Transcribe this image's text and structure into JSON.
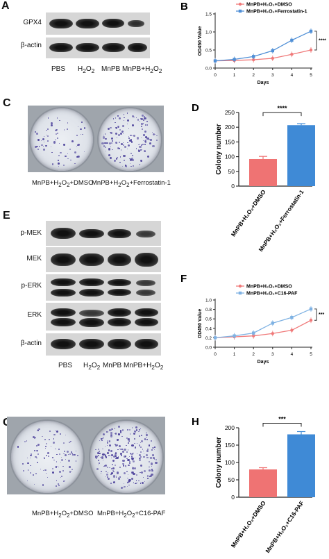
{
  "panels": {
    "A": {
      "letter": "A",
      "rows": [
        "GPX4",
        "β-actin"
      ],
      "lanes": [
        "PBS",
        "H<sub>2</sub>O<sub>2</sub>",
        "MnPB",
        "MnPB+H<sub>2</sub>O<sub>2</sub>"
      ]
    },
    "C": {
      "letter": "C",
      "captions": [
        "MnPB+H<sub>2</sub>O<sub>2</sub>+DMSO",
        "MnPB+H<sub>2</sub>O<sub>2</sub>+Ferrostatin-1"
      ]
    },
    "E": {
      "letter": "E",
      "rows": [
        "p-MEK",
        "MEK",
        "p-ERK",
        "ERK",
        "β-actin"
      ],
      "lanes": [
        "PBS",
        "H<sub>2</sub>O<sub>2</sub>",
        "MnPB",
        "MnPB+H<sub>2</sub>O<sub>2</sub>"
      ]
    },
    "G": {
      "letter": "G",
      "captions": [
        "MnPB+H<sub>2</sub>O<sub>2</sub>+DMSO",
        "MnPB+H<sub>2</sub>O<sub>2</sub>+C16-PAF"
      ]
    }
  },
  "chart_data": [
    {
      "id": "B",
      "type": "line",
      "letter": "B",
      "xlabel": "Days",
      "ylabel": "OD450 Value",
      "x": [
        0,
        1,
        2,
        3,
        4,
        5
      ],
      "xlim": [
        0,
        5
      ],
      "ylim": [
        0,
        1.5
      ],
      "xticks": [
        0,
        1,
        2,
        3,
        4,
        5
      ],
      "yticks": [
        0.0,
        0.5,
        1.0,
        1.5
      ],
      "series": [
        {
          "name": "MnPB+H₂O₂+DMSO",
          "color": "#f07a7a",
          "values": [
            0.2,
            0.21,
            0.23,
            0.27,
            0.38,
            0.5
          ]
        },
        {
          "name": "MnPB+H₂O₂+Ferrostatin-1",
          "color": "#4f8fd6",
          "values": [
            0.2,
            0.24,
            0.32,
            0.48,
            0.77,
            1.02
          ]
        }
      ],
      "significance": "****"
    },
    {
      "id": "D",
      "type": "bar",
      "letter": "D",
      "ylabel": "Colony number",
      "categories": [
        "MnPB+H₂O₂+DMSO",
        "MnPB+H₂O₂+Ferrostatin-1"
      ],
      "values": [
        92,
        207
      ],
      "errors": [
        9,
        5
      ],
      "colors": [
        "#ef7373",
        "#3f8ad6"
      ],
      "ylim": [
        0,
        250
      ],
      "yticks": [
        0,
        50,
        100,
        150,
        200,
        250
      ],
      "significance": "****"
    },
    {
      "id": "F",
      "type": "line",
      "letter": "F",
      "xlabel": "Days",
      "ylabel": "OD450 Value",
      "x": [
        0,
        1,
        2,
        3,
        4,
        5
      ],
      "xlim": [
        0,
        5
      ],
      "ylim": [
        0,
        1.0
      ],
      "xticks": [
        0,
        1,
        2,
        3,
        4,
        5
      ],
      "yticks": [
        0.0,
        0.2,
        0.4,
        0.6,
        0.8,
        1.0
      ],
      "series": [
        {
          "name": "MnPB+H₂O₂+DMSO",
          "color": "#f07a7a",
          "values": [
            0.2,
            0.22,
            0.24,
            0.29,
            0.36,
            0.57
          ]
        },
        {
          "name": "MnPB+H₂O₂+C16-PAF",
          "color": "#7fb2e3",
          "values": [
            0.2,
            0.24,
            0.3,
            0.51,
            0.63,
            0.81
          ]
        }
      ],
      "significance": "***"
    },
    {
      "id": "H",
      "type": "bar",
      "letter": "H",
      "ylabel": "Colony number",
      "categories": [
        "MnPB+H₂O₂+DMSO",
        "MnPB+H₂O₂+C16-PAF"
      ],
      "values": [
        80,
        181
      ],
      "errors": [
        5,
        8
      ],
      "colors": [
        "#ef7373",
        "#3f8ad6"
      ],
      "ylim": [
        0,
        200
      ],
      "yticks": [
        0,
        50,
        100,
        150,
        200
      ],
      "significance": "***"
    }
  ]
}
